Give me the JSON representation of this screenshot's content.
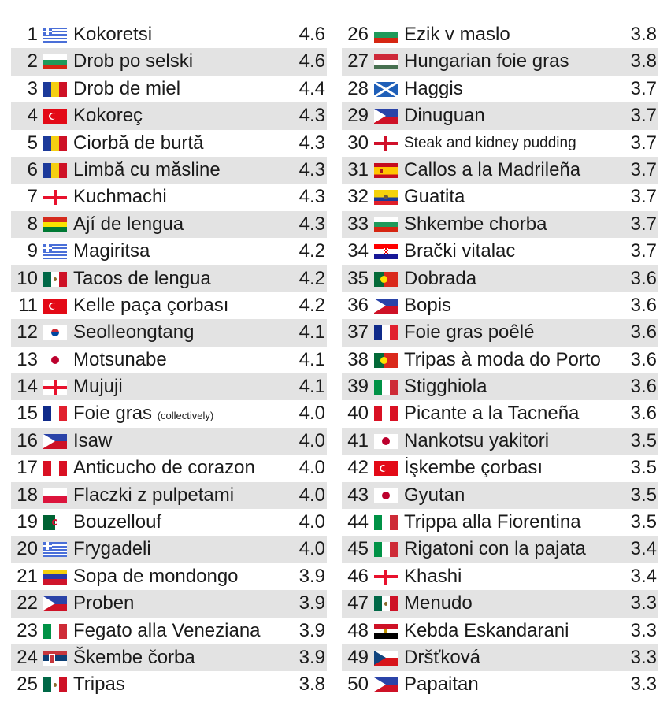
{
  "columns": [
    [
      {
        "rank": "1",
        "flag": "gr",
        "name": "Kokoretsi",
        "score": "4.6"
      },
      {
        "rank": "2",
        "flag": "bg",
        "name": "Drob po selski",
        "score": "4.6"
      },
      {
        "rank": "3",
        "flag": "ro",
        "name": "Drob de miel",
        "score": "4.4"
      },
      {
        "rank": "4",
        "flag": "tr",
        "name": "Kokoreç",
        "score": "4.3"
      },
      {
        "rank": "5",
        "flag": "ro",
        "name": "Ciorbă de burtă",
        "score": "4.3"
      },
      {
        "rank": "6",
        "flag": "ro",
        "name": "Limbă cu măsline",
        "score": "4.3"
      },
      {
        "rank": "7",
        "flag": "ge",
        "name": "Kuchmachi",
        "score": "4.3"
      },
      {
        "rank": "8",
        "flag": "bo",
        "name": "Ají de lengua",
        "score": "4.3"
      },
      {
        "rank": "9",
        "flag": "gr",
        "name": "Magiritsa",
        "score": "4.2"
      },
      {
        "rank": "10",
        "flag": "mx",
        "name": "Tacos de lengua",
        "score": "4.2"
      },
      {
        "rank": "11",
        "flag": "tr",
        "name": "Kelle paça çorbası",
        "score": "4.2"
      },
      {
        "rank": "12",
        "flag": "kr",
        "name": "Seolleongtang",
        "score": "4.1"
      },
      {
        "rank": "13",
        "flag": "jp",
        "name": "Motsunabe",
        "score": "4.1"
      },
      {
        "rank": "14",
        "flag": "ge",
        "name": "Mujuji",
        "score": "4.1"
      },
      {
        "rank": "15",
        "flag": "fr",
        "name": "Foie gras",
        "note": "(collectively)",
        "score": "4.0"
      },
      {
        "rank": "16",
        "flag": "ph",
        "name": "Isaw",
        "score": "4.0"
      },
      {
        "rank": "17",
        "flag": "pe",
        "name": "Anticucho de corazon",
        "score": "4.0"
      },
      {
        "rank": "18",
        "flag": "pl",
        "name": "Flaczki z pulpetami",
        "score": "4.0"
      },
      {
        "rank": "19",
        "flag": "dz",
        "name": "Bouzellouf",
        "score": "4.0"
      },
      {
        "rank": "20",
        "flag": "gr",
        "name": "Frygadeli",
        "score": "4.0"
      },
      {
        "rank": "21",
        "flag": "ve",
        "name": "Sopa de mondongo",
        "score": "3.9"
      },
      {
        "rank": "22",
        "flag": "ph",
        "name": "Proben",
        "score": "3.9"
      },
      {
        "rank": "23",
        "flag": "it",
        "name": "Fegato alla Veneziana",
        "score": "3.9"
      },
      {
        "rank": "24",
        "flag": "rs",
        "name": "Škembe čorba",
        "score": "3.9"
      },
      {
        "rank": "25",
        "flag": "mx",
        "name": "Tripas",
        "score": "3.8"
      }
    ],
    [
      {
        "rank": "26",
        "flag": "bg",
        "name": "Ezik v maslo",
        "score": "3.8"
      },
      {
        "rank": "27",
        "flag": "hu",
        "name": "Hungarian foie gras",
        "score": "3.8"
      },
      {
        "rank": "28",
        "flag": "sc",
        "name": "Haggis",
        "score": "3.7"
      },
      {
        "rank": "29",
        "flag": "ph",
        "name": "Dinuguan",
        "score": "3.7"
      },
      {
        "rank": "30",
        "flag": "en",
        "name": "Steak and kidney pudding",
        "score": "3.7",
        "small": true
      },
      {
        "rank": "31",
        "flag": "es",
        "name": "Callos a la Madrileña",
        "score": "3.7"
      },
      {
        "rank": "32",
        "flag": "ec",
        "name": "Guatita",
        "score": "3.7"
      },
      {
        "rank": "33",
        "flag": "bg",
        "name": "Shkembe chorba",
        "score": "3.7"
      },
      {
        "rank": "34",
        "flag": "hr",
        "name": "Brački vitalac",
        "score": "3.7"
      },
      {
        "rank": "35",
        "flag": "pt",
        "name": "Dobrada",
        "score": "3.6"
      },
      {
        "rank": "36",
        "flag": "ph",
        "name": "Bopis",
        "score": "3.6"
      },
      {
        "rank": "37",
        "flag": "fr",
        "name": "Foie gras poêlé",
        "score": "3.6"
      },
      {
        "rank": "38",
        "flag": "pt",
        "name": "Tripas à moda do Porto",
        "score": "3.6"
      },
      {
        "rank": "39",
        "flag": "it",
        "name": "Stigghiola",
        "score": "3.6"
      },
      {
        "rank": "40",
        "flag": "pe",
        "name": "Picante a la Tacneña",
        "score": "3.6"
      },
      {
        "rank": "41",
        "flag": "jp",
        "name": "Nankotsu yakitori",
        "score": "3.5"
      },
      {
        "rank": "42",
        "flag": "tr",
        "name": "İşkembe çorbası",
        "score": "3.5"
      },
      {
        "rank": "43",
        "flag": "jp",
        "name": "Gyutan",
        "score": "3.5"
      },
      {
        "rank": "44",
        "flag": "it",
        "name": "Trippa alla Fiorentina",
        "score": "3.5"
      },
      {
        "rank": "45",
        "flag": "it",
        "name": "Rigatoni con la pajata",
        "score": "3.4"
      },
      {
        "rank": "46",
        "flag": "ge",
        "name": "Khashi",
        "score": "3.4"
      },
      {
        "rank": "47",
        "flag": "mx",
        "name": "Menudo",
        "score": "3.3"
      },
      {
        "rank": "48",
        "flag": "eg",
        "name": "Kebda Eskandarani",
        "score": "3.3"
      },
      {
        "rank": "49",
        "flag": "cz",
        "name": "Dršťková",
        "score": "3.3"
      },
      {
        "rank": "50",
        "flag": "ph",
        "name": "Papaitan",
        "score": "3.3"
      }
    ]
  ]
}
